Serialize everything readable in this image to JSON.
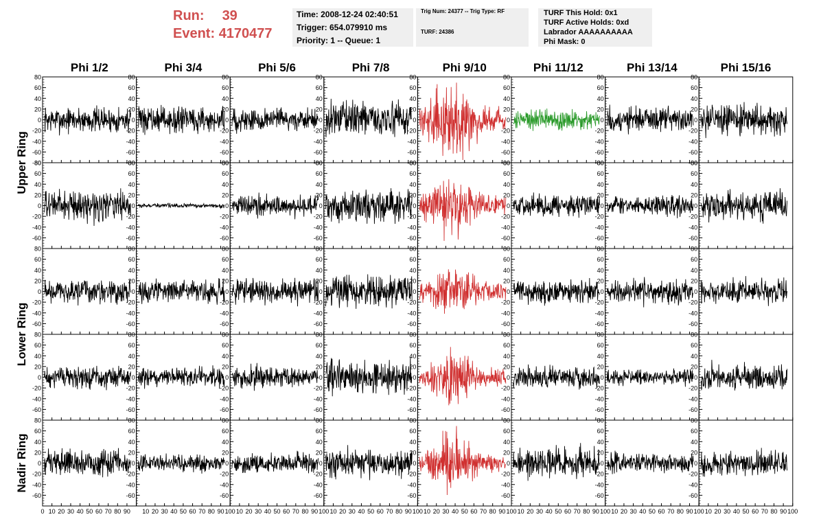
{
  "header": {
    "run_label": "Run:",
    "run_value": "39",
    "event_label": "Event:",
    "event_value": "4170477",
    "time_line": "Time: 2008-12-24 02:40:51",
    "trigger_line": "Trigger: 654.079910 ms",
    "priority_line": "Priority: 1 -- Queue: 1",
    "trig_num_line": "Trig Num: 24377 -- Trig Type: RF",
    "turf_line": "TURF: 24386",
    "turf_hold_line": "TURF This Hold: 0x1",
    "turf_active_line": "TURF Active Holds: 0xd",
    "labrador_line": "Labrador AAAAAAAAAA",
    "phi_mask_line": "Phi Mask: 0"
  },
  "chart_data": {
    "type": "line",
    "columns": [
      "Phi 1/2",
      "Phi 3/4",
      "Phi 5/6",
      "Phi 7/8",
      "Phi 9/10",
      "Phi 11/12",
      "Phi 13/14",
      "Phi 15/16"
    ],
    "ring_labels": [
      "Upper Ring",
      "Lower Ring",
      "Nadir Ring"
    ],
    "rows": 5,
    "row_ring_groups": [
      [
        0,
        1
      ],
      [
        2,
        3
      ],
      [
        4
      ]
    ],
    "xlim": [
      0,
      100
    ],
    "ylim": [
      -80,
      80
    ],
    "y_ticks": [
      -80,
      -60,
      -40,
      -20,
      0,
      20,
      40,
      60,
      80
    ],
    "x_ticks": [
      0,
      10,
      20,
      30,
      40,
      50,
      60,
      70,
      80,
      90,
      100
    ],
    "x_tick_labels_bottom_first": [
      "0",
      "10",
      "20",
      "30",
      "40",
      "50",
      "60",
      "70",
      "80",
      "90"
    ],
    "x_tick_labels_bottom_rest": [
      "10",
      "20",
      "30",
      "40",
      "50",
      "60",
      "70",
      "80",
      "90",
      "100"
    ],
    "y_tick_labels": [
      "-80",
      "-60",
      "-40",
      "-20",
      "0",
      "20",
      "40",
      "60",
      "80"
    ],
    "y_tick_labels_lower_rows": [
      "-60",
      "-40",
      "-20",
      "0",
      "20",
      "40",
      "60",
      "80"
    ],
    "colors": {
      "normal": "#000000",
      "triggered": "#d03030",
      "hold": "#2a9a2a"
    },
    "panel_color": [
      [
        "normal",
        "normal",
        "normal",
        "normal",
        "triggered",
        "hold",
        "normal",
        "normal"
      ],
      [
        "normal",
        "normal",
        "normal",
        "normal",
        "triggered",
        "normal",
        "normal",
        "normal"
      ],
      [
        "normal",
        "normal",
        "normal",
        "normal",
        "triggered",
        "normal",
        "normal",
        "normal"
      ],
      [
        "normal",
        "normal",
        "normal",
        "normal",
        "triggered",
        "normal",
        "normal",
        "normal"
      ],
      [
        "normal",
        "normal",
        "normal",
        "normal",
        "triggered",
        "normal",
        "normal",
        "normal"
      ]
    ],
    "panel_rms": [
      [
        12,
        12,
        11,
        16,
        20,
        10,
        12,
        14
      ],
      [
        14,
        2,
        10,
        15,
        16,
        10,
        9,
        13
      ],
      [
        11,
        10,
        11,
        15,
        14,
        11,
        11,
        11
      ],
      [
        10,
        9,
        10,
        16,
        14,
        10,
        7,
        12
      ],
      [
        12,
        8,
        9,
        14,
        15,
        14,
        9,
        11
      ]
    ],
    "n_samples": 260
  }
}
